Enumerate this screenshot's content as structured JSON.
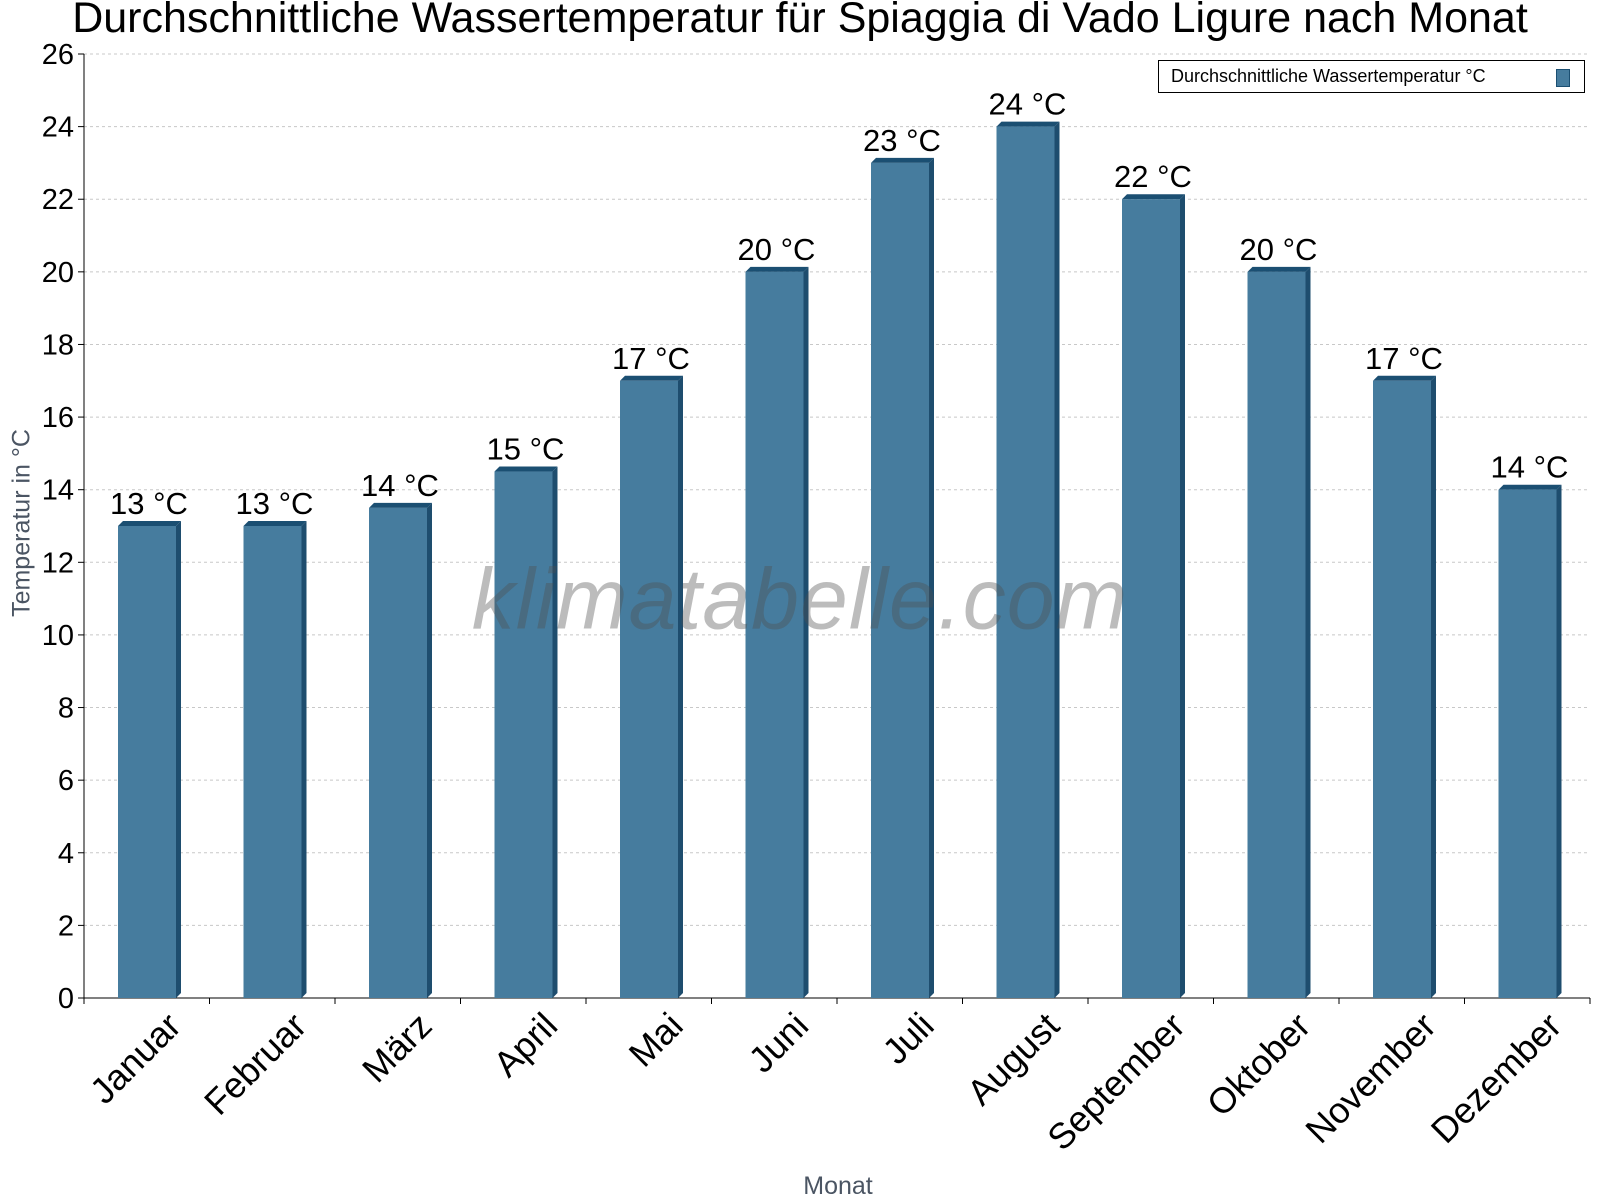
{
  "chart_data": {
    "type": "bar",
    "title": "Durchschnittliche Wassertemperatur für Spiaggia di Vado Ligure nach Monat",
    "xlabel": "Monat",
    "ylabel": "Temperatur in °C",
    "categories": [
      "Januar",
      "Februar",
      "März",
      "April",
      "Mai",
      "Juni",
      "Juli",
      "August",
      "September",
      "Oktober",
      "November",
      "Dezember"
    ],
    "series": [
      {
        "name": "Durchschnittliche Wassertemperatur °C",
        "values": [
          13,
          13,
          13.5,
          14.5,
          17,
          20,
          23,
          24,
          22,
          20,
          17,
          14
        ],
        "labels": [
          "13 °C",
          "13 °C",
          "14 °C",
          "15 °C",
          "17 °C",
          "20 °C",
          "23 °C",
          "24 °C",
          "22 °C",
          "20 °C",
          "17 °C",
          "14 °C"
        ]
      }
    ],
    "ylim": [
      0,
      26
    ],
    "yticks": [
      "0",
      "2",
      "4",
      "6",
      "8",
      "10",
      "12",
      "14",
      "16",
      "18",
      "20",
      "22",
      "24",
      "26"
    ],
    "grid": true,
    "legend_position": "top-right",
    "colors": {
      "bar_front": "#467c9e",
      "bar_side": "#1e4d6e",
      "bar_top": "#1b4f72",
      "grid": "#c8c8c8",
      "axis": "#000000"
    }
  },
  "watermark": "klimatabelle.com"
}
